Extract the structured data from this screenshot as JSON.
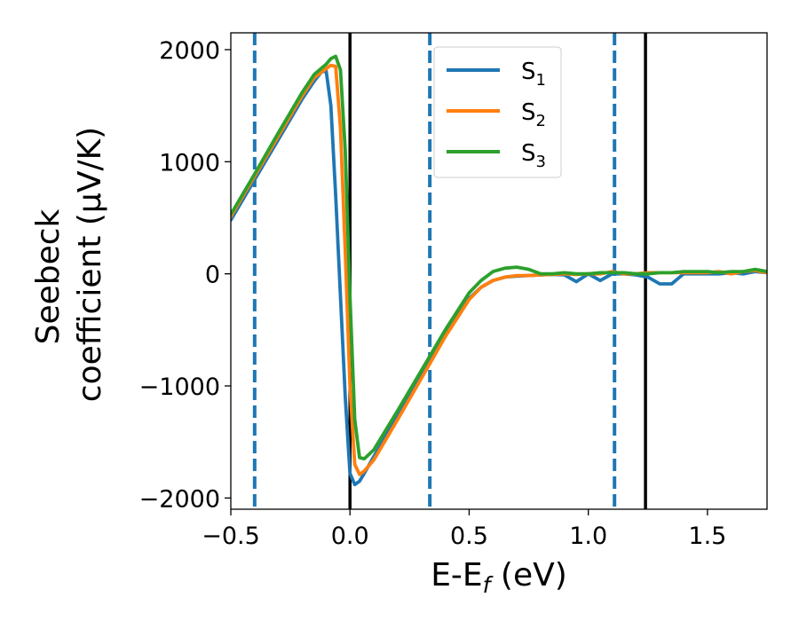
{
  "chart_data": {
    "type": "line",
    "xlabel": "E-E_f (eV)",
    "xlabel_parts": {
      "main": "E-E",
      "sub": "f",
      "tail": " (eV)"
    },
    "ylabel_line1": "Seebeck",
    "ylabel_line2": "coefficient  (μV/K)",
    "xlim": [
      -0.5,
      1.75
    ],
    "ylim": [
      -2100,
      2150
    ],
    "xticks": [
      -0.5,
      0.0,
      0.5,
      1.0,
      1.5
    ],
    "xtick_labels": [
      "−0.5",
      "0.0",
      "0.5",
      "1.0",
      "1.5"
    ],
    "yticks": [
      -2000,
      -1000,
      0,
      1000,
      2000
    ],
    "ytick_labels": [
      "−2000",
      "−1000",
      "0",
      "1000",
      "2000"
    ],
    "grid": false,
    "legend_position": "top-center",
    "series": [
      {
        "name": "S_1",
        "label_main": "S",
        "label_sub": "1",
        "color": "#1f77b4",
        "x": [
          -0.5,
          -0.4,
          -0.3,
          -0.2,
          -0.15,
          -0.12,
          -0.1,
          -0.08,
          -0.06,
          -0.04,
          -0.02,
          0.0,
          0.02,
          0.04,
          0.06,
          0.1,
          0.2,
          0.3,
          0.4,
          0.5,
          0.55,
          0.6,
          0.65,
          0.7,
          0.75,
          0.8,
          0.85,
          0.9,
          0.95,
          1.0,
          1.05,
          1.1,
          1.15,
          1.2,
          1.25,
          1.3,
          1.35,
          1.4,
          1.45,
          1.5,
          1.55,
          1.6,
          1.65,
          1.7,
          1.75
        ],
        "y": [
          480,
          840,
          1200,
          1560,
          1720,
          1800,
          1810,
          1500,
          700,
          -200,
          -1100,
          -1780,
          -1880,
          -1850,
          -1780,
          -1630,
          -1270,
          -910,
          -550,
          -220,
          -120,
          -60,
          -30,
          -20,
          -15,
          -10,
          -5,
          -10,
          -70,
          0,
          -60,
          0,
          0,
          -10,
          -30,
          -90,
          -90,
          0,
          0,
          0,
          0,
          10,
          0,
          20,
          10
        ]
      },
      {
        "name": "S_2",
        "label_main": "S",
        "label_sub": "2",
        "color": "#ff7f0e",
        "x": [
          -0.5,
          -0.4,
          -0.3,
          -0.2,
          -0.15,
          -0.1,
          -0.08,
          -0.06,
          -0.04,
          -0.02,
          0.0,
          0.02,
          0.04,
          0.06,
          0.1,
          0.2,
          0.3,
          0.4,
          0.5,
          0.55,
          0.6,
          0.65,
          0.7,
          0.75,
          0.8,
          0.85,
          0.9,
          0.95,
          1.0,
          1.05,
          1.1,
          1.15,
          1.2,
          1.25,
          1.3,
          1.35,
          1.4,
          1.45,
          1.5,
          1.55,
          1.6,
          1.65,
          1.7,
          1.75
        ],
        "y": [
          510,
          870,
          1230,
          1590,
          1750,
          1830,
          1860,
          1850,
          1300,
          200,
          -1000,
          -1700,
          -1790,
          -1760,
          -1660,
          -1300,
          -930,
          -560,
          -230,
          -120,
          -60,
          -30,
          -15,
          -15,
          -10,
          -5,
          0,
          -5,
          0,
          0,
          20,
          0,
          0,
          10,
          10,
          10,
          10,
          10,
          10,
          20,
          0,
          20,
          30,
          10
        ]
      },
      {
        "name": "S_3",
        "label_main": "S",
        "label_sub": "3",
        "color": "#2ca02c",
        "x": [
          -0.5,
          -0.4,
          -0.3,
          -0.2,
          -0.15,
          -0.1,
          -0.08,
          -0.06,
          -0.04,
          -0.02,
          0.0,
          0.02,
          0.04,
          0.06,
          0.08,
          0.1,
          0.2,
          0.3,
          0.4,
          0.5,
          0.55,
          0.6,
          0.65,
          0.7,
          0.75,
          0.8,
          0.85,
          0.9,
          0.95,
          1.0,
          1.05,
          1.1,
          1.15,
          1.2,
          1.25,
          1.3,
          1.35,
          1.4,
          1.45,
          1.5,
          1.55,
          1.6,
          1.65,
          1.7,
          1.75
        ],
        "y": [
          530,
          890,
          1260,
          1620,
          1780,
          1870,
          1920,
          1940,
          1820,
          1100,
          -200,
          -1300,
          -1640,
          -1650,
          -1610,
          -1570,
          -1220,
          -860,
          -500,
          -170,
          -60,
          20,
          50,
          60,
          40,
          0,
          0,
          10,
          0,
          0,
          10,
          10,
          10,
          0,
          0,
          10,
          10,
          20,
          20,
          20,
          10,
          20,
          20,
          40,
          20
        ]
      }
    ],
    "vertical_lines": [
      {
        "x": -0.4,
        "style": "dashed",
        "color": "#1f77b4"
      },
      {
        "x": 0.0,
        "style": "solid",
        "color": "#000000"
      },
      {
        "x": 0.335,
        "style": "dashed",
        "color": "#1f77b4"
      },
      {
        "x": 1.11,
        "style": "dashed",
        "color": "#1f77b4"
      },
      {
        "x": 1.24,
        "style": "solid",
        "color": "#000000"
      }
    ]
  }
}
